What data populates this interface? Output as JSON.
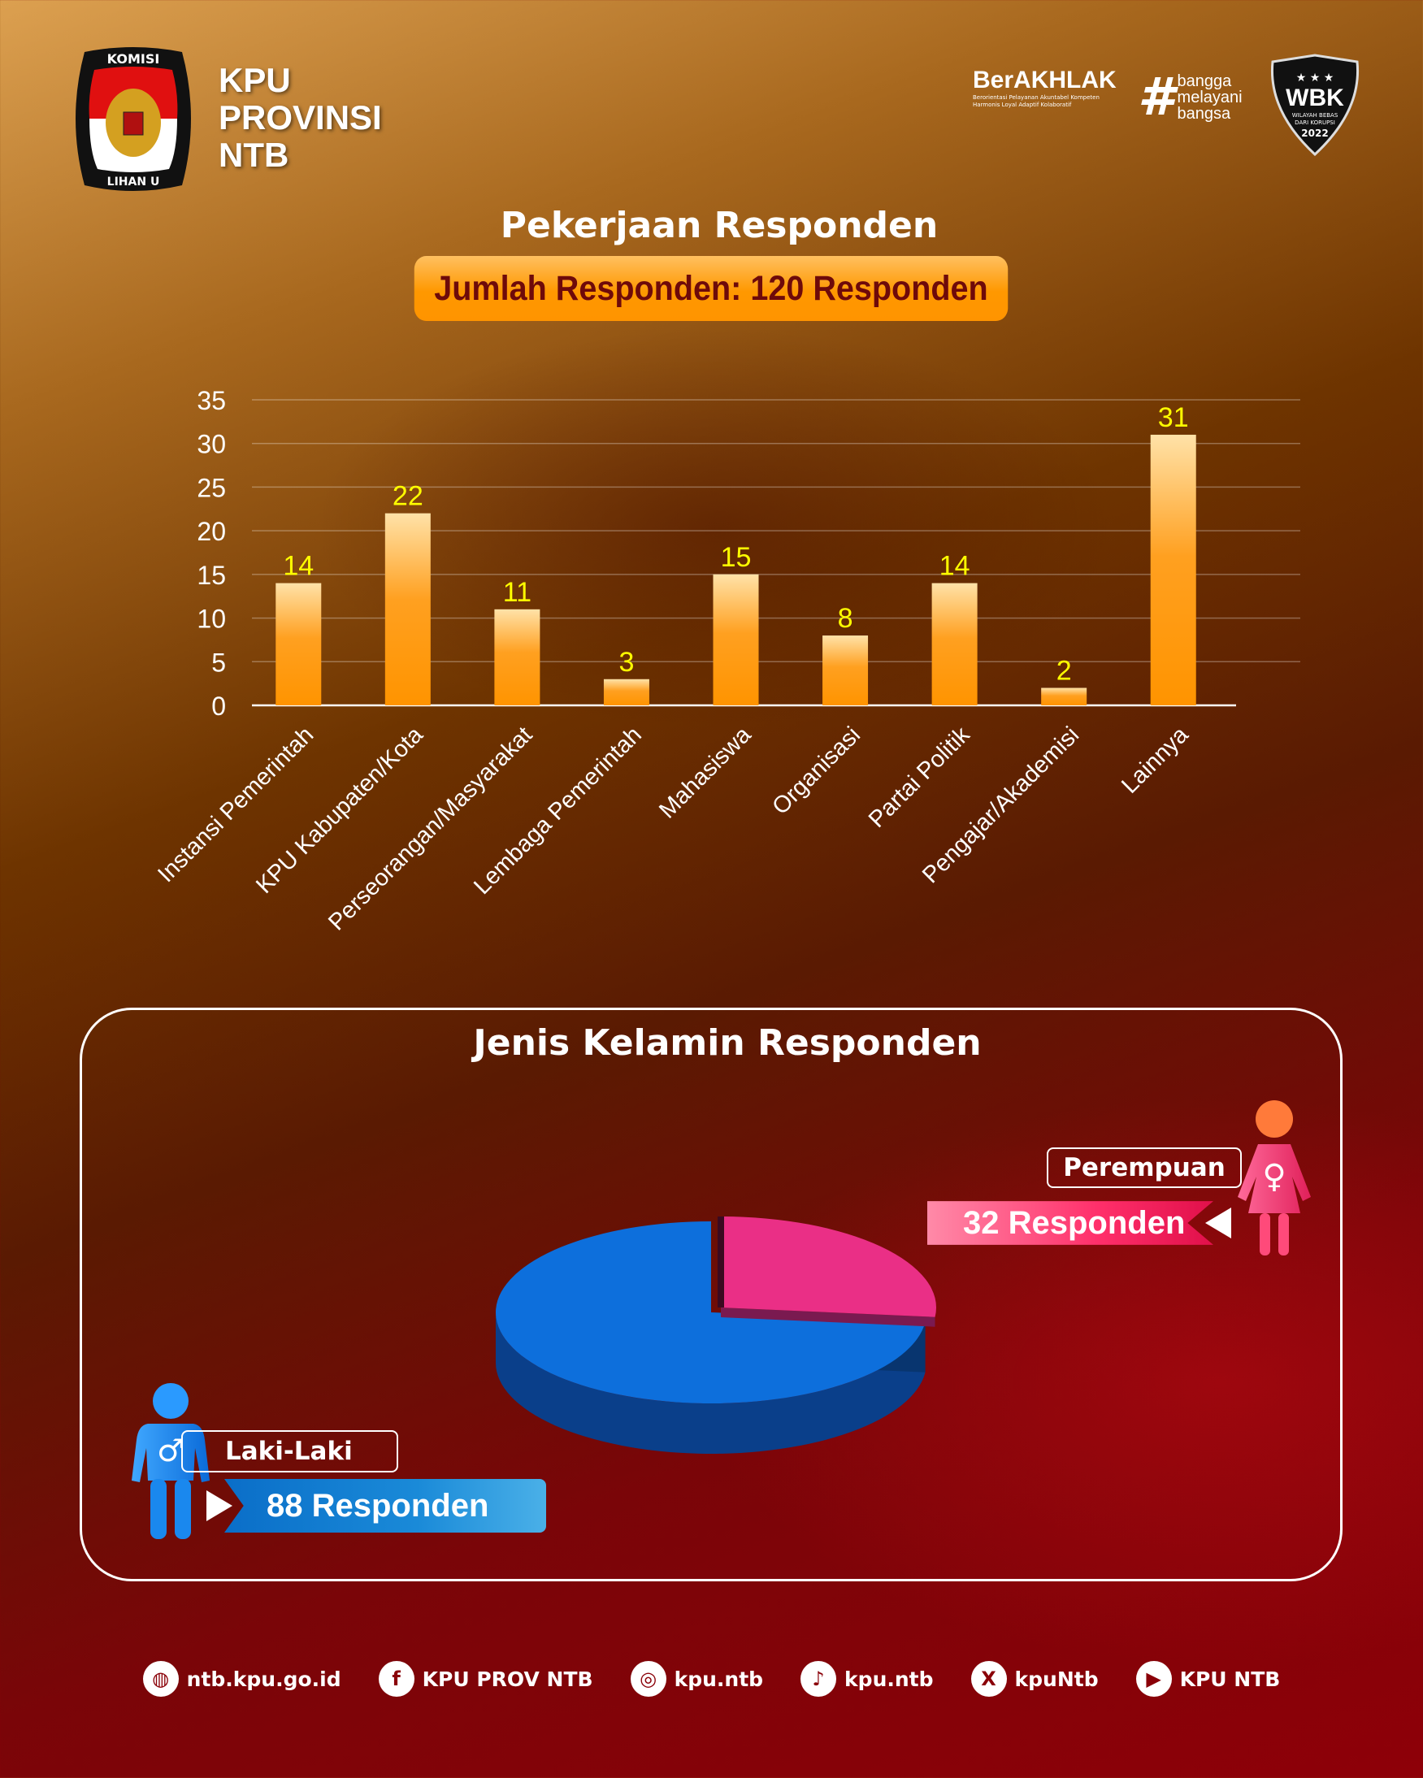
{
  "header": {
    "org_lines": [
      "KPU",
      "PROVINSI",
      "NTB"
    ],
    "logo_text": "KOMISI PEMILIHAN UMUM",
    "berakhlak": {
      "title": "BerAKHLAK",
      "subtitle_1": "Berorientasi Pelayanan Akuntabel Kompeten",
      "subtitle_2": "Harmonis Loyal Adaptif Kolaboratif"
    },
    "bangga": {
      "hash": "#",
      "words": [
        "bangga",
        "melayani",
        "bangsa"
      ]
    },
    "wbk": {
      "title": "WBK",
      "subtitle": "WILAYAH BEBAS DARI KORUPSI",
      "year": "2022"
    }
  },
  "occupation": {
    "title": "Pekerjaan Responden",
    "total_label": "Jumlah Responden: 120 Responden"
  },
  "gender": {
    "title": "Jenis Kelamin Responden",
    "female_label": "Perempuan",
    "female_count": "32 Responden",
    "male_label": "Laki-Laki",
    "male_count": "88 Responden"
  },
  "chart_data": [
    {
      "type": "bar",
      "title": "Pekerjaan Responden",
      "categories": [
        "Instansi Pemerintah",
        "KPU Kabupaten/Kota",
        "Perseorangan/Masyarakat",
        "Lembaga Pemerintah",
        "Mahasiswa",
        "Organisasi",
        "Partai Politik",
        "Pengajar/Akademisi",
        "Lainnya"
      ],
      "values": [
        14,
        22,
        11,
        3,
        15,
        8,
        14,
        2,
        31
      ],
      "yticks": [
        "0",
        "5",
        "10",
        "15",
        "20",
        "25",
        "30",
        "35"
      ],
      "ylim": [
        0,
        35
      ],
      "grid": true,
      "xlabel": "",
      "ylabel": "",
      "bar_color": "#ff9a00",
      "label_color": "#ffff00"
    },
    {
      "type": "pie",
      "title": "Jenis Kelamin Responden",
      "categories": [
        "Perempuan",
        "Laki-Laki"
      ],
      "values": [
        32,
        88
      ],
      "colors": [
        "#ea2f86",
        "#0d6fdc"
      ]
    }
  ],
  "footer": [
    {
      "icon": "globe-icon",
      "glyph": "◍",
      "label": "ntb.kpu.go.id"
    },
    {
      "icon": "facebook-icon",
      "glyph": "f",
      "label": "KPU PROV NTB"
    },
    {
      "icon": "instagram-icon",
      "glyph": "◎",
      "label": "kpu.ntb"
    },
    {
      "icon": "tiktok-icon",
      "glyph": "♪",
      "label": "kpu.ntb"
    },
    {
      "icon": "x-icon",
      "glyph": "X",
      "label": "kpuNtb"
    },
    {
      "icon": "youtube-icon",
      "glyph": "▶",
      "label": "KPU NTB"
    }
  ]
}
